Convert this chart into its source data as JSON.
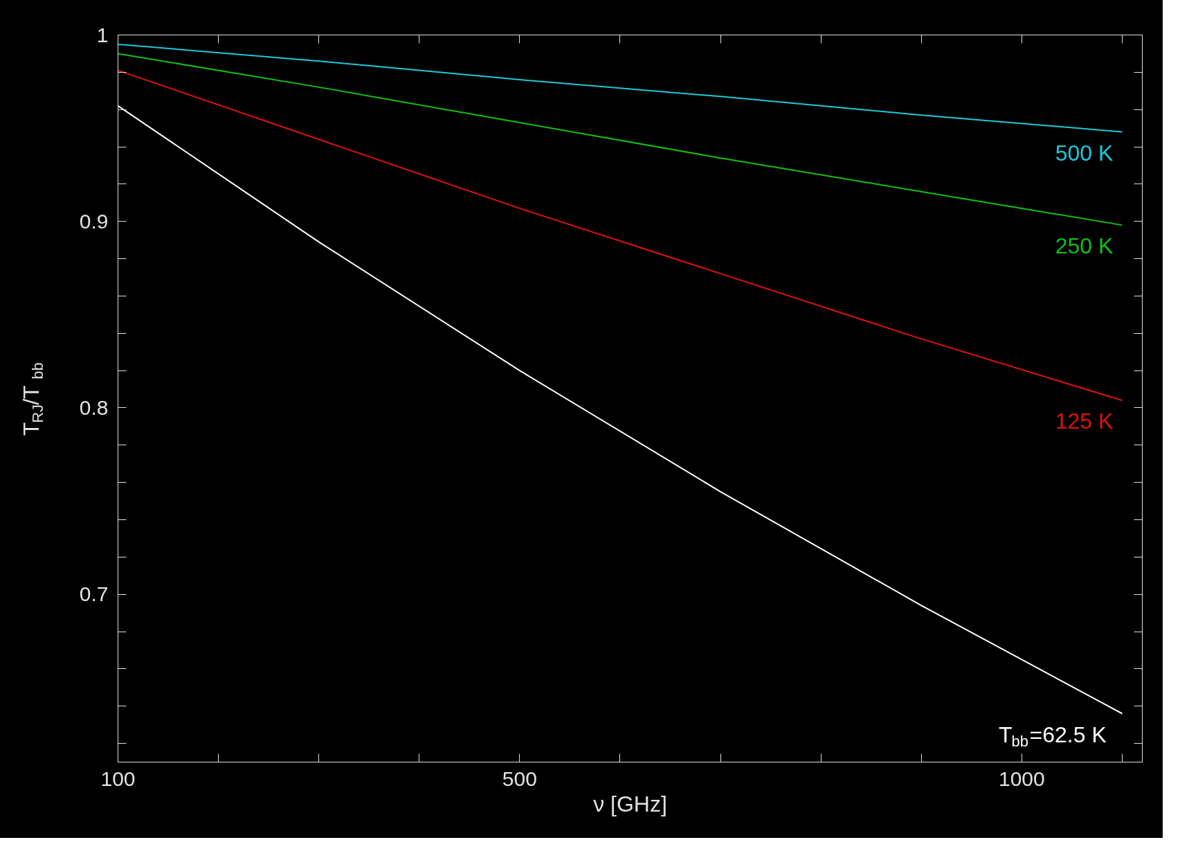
{
  "chart_data": {
    "type": "line",
    "xlabel": "ν [GHz]",
    "ylabel": "T$_{RJ}$/T$_{bb}$",
    "x": [
      100,
      300,
      500,
      700,
      900,
      1100
    ],
    "series": [
      {
        "name": "500 K",
        "color": "#1ec8dc",
        "values": [
          0.995,
          0.986,
          0.976,
          0.967,
          0.957,
          0.948
        ]
      },
      {
        "name": "250 K",
        "color": "#10c010",
        "values": [
          0.99,
          0.972,
          0.953,
          0.934,
          0.916,
          0.898
        ]
      },
      {
        "name": "125 K",
        "color": "#e01010",
        "values": [
          0.981,
          0.944,
          0.907,
          0.872,
          0.837,
          0.804
        ]
      },
      {
        "name": "T$_{bb}$=62.5 K",
        "color": "#ffffff",
        "values": [
          0.962,
          0.889,
          0.82,
          0.755,
          0.694,
          0.636
        ]
      }
    ],
    "xlim": [
      100,
      1120
    ],
    "ylim": [
      0.61,
      1.0
    ],
    "xticks": [
      100,
      {
        "value": 200,
        "label": null
      },
      {
        "value": 300,
        "label": null
      },
      {
        "value": 400,
        "label": null
      },
      500,
      {
        "value": 600,
        "label": null
      },
      {
        "value": 700,
        "label": null
      },
      {
        "value": 800,
        "label": null
      },
      {
        "value": 900,
        "label": null
      },
      1000,
      {
        "value": 1100,
        "label": null
      }
    ],
    "yticks": [
      {
        "value": 0.62,
        "label": null
      },
      {
        "value": 0.64,
        "label": null
      },
      {
        "value": 0.66,
        "label": null
      },
      {
        "value": 0.68,
        "label": null
      },
      0.7,
      {
        "value": 0.72,
        "label": null
      },
      {
        "value": 0.74,
        "label": null
      },
      {
        "value": 0.76,
        "label": null
      },
      {
        "value": 0.78,
        "label": null
      },
      0.8,
      {
        "value": 0.82,
        "label": null
      },
      {
        "value": 0.84,
        "label": null
      },
      {
        "value": 0.86,
        "label": null
      },
      {
        "value": 0.88,
        "label": null
      },
      0.9,
      {
        "value": 0.92,
        "label": null
      },
      {
        "value": 0.94,
        "label": null
      },
      {
        "value": 0.96,
        "label": null
      },
      {
        "value": 0.98,
        "label": null
      },
      1
    ],
    "grid": false,
    "marker": "none",
    "line_style": "solid"
  }
}
